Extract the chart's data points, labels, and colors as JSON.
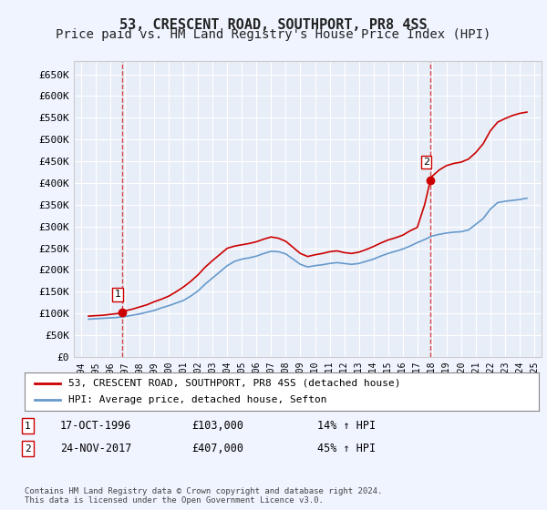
{
  "title": "53, CRESCENT ROAD, SOUTHPORT, PR8 4SS",
  "subtitle": "Price paid vs. HM Land Registry's House Price Index (HPI)",
  "title_fontsize": 11,
  "subtitle_fontsize": 10,
  "ylabel_ticks": [
    "£0",
    "£50K",
    "£100K",
    "£150K",
    "£200K",
    "£250K",
    "£300K",
    "£350K",
    "£400K",
    "£450K",
    "£500K",
    "£550K",
    "£600K",
    "£650K"
  ],
  "ytick_values": [
    0,
    50000,
    100000,
    150000,
    200000,
    250000,
    300000,
    350000,
    400000,
    450000,
    500000,
    550000,
    600000,
    650000
  ],
  "ylim": [
    0,
    680000
  ],
  "xlim_start": 1993.5,
  "xlim_end": 2025.5,
  "xticks": [
    1994,
    1995,
    1996,
    1997,
    1998,
    1999,
    2000,
    2001,
    2002,
    2003,
    2004,
    2005,
    2006,
    2007,
    2008,
    2009,
    2010,
    2011,
    2012,
    2013,
    2014,
    2015,
    2016,
    2017,
    2018,
    2019,
    2020,
    2021,
    2022,
    2023,
    2024,
    2025
  ],
  "sale1_x": 1996.8,
  "sale1_y": 103000,
  "sale1_label": "1",
  "sale1_date": "17-OCT-1996",
  "sale1_price": "£103,000",
  "sale1_hpi": "14% ↑ HPI",
  "sale2_x": 2017.9,
  "sale2_y": 407000,
  "sale2_label": "2",
  "sale2_date": "24-NOV-2017",
  "sale2_price": "£407,000",
  "sale2_hpi": "45% ↑ HPI",
  "red_line_color": "#cc0000",
  "blue_line_color": "#6699cc",
  "marker_color_red": "#cc0000",
  "vline_color": "#cc0000",
  "background_color": "#f0f4ff",
  "plot_bg_color": "#e8eef8",
  "grid_color": "#ffffff",
  "legend_label_red": "53, CRESCENT ROAD, SOUTHPORT, PR8 4SS (detached house)",
  "legend_label_blue": "HPI: Average price, detached house, Sefton",
  "footer": "Contains HM Land Registry data © Crown copyright and database right 2024.\nThis data is licensed under the Open Government Licence v3.0.",
  "hpi_data": {
    "years": [
      1994.5,
      1995.0,
      1995.5,
      1996.0,
      1996.5,
      1997.0,
      1997.5,
      1998.0,
      1998.5,
      1999.0,
      1999.5,
      2000.0,
      2000.5,
      2001.0,
      2001.5,
      2002.0,
      2002.5,
      2003.0,
      2003.5,
      2004.0,
      2004.5,
      2005.0,
      2005.5,
      2006.0,
      2006.5,
      2007.0,
      2007.5,
      2008.0,
      2008.5,
      2009.0,
      2009.5,
      2010.0,
      2010.5,
      2011.0,
      2011.5,
      2012.0,
      2012.5,
      2013.0,
      2013.5,
      2014.0,
      2014.5,
      2015.0,
      2015.5,
      2016.0,
      2016.5,
      2017.0,
      2017.5,
      2018.0,
      2018.5,
      2019.0,
      2019.5,
      2020.0,
      2020.5,
      2021.0,
      2021.5,
      2022.0,
      2022.5,
      2023.0,
      2023.5,
      2024.0,
      2024.5
    ],
    "values": [
      87000,
      88000,
      89000,
      90000,
      91000,
      93000,
      96000,
      99000,
      103000,
      107000,
      113000,
      118000,
      124000,
      130000,
      140000,
      152000,
      168000,
      182000,
      196000,
      210000,
      220000,
      225000,
      228000,
      232000,
      238000,
      243000,
      242000,
      237000,
      225000,
      213000,
      207000,
      210000,
      212000,
      215000,
      217000,
      215000,
      213000,
      215000,
      220000,
      225000,
      232000,
      238000,
      243000,
      248000,
      255000,
      263000,
      270000,
      278000,
      282000,
      285000,
      287000,
      288000,
      292000,
      305000,
      318000,
      340000,
      355000,
      358000,
      360000,
      362000,
      365000
    ]
  },
  "red_data": {
    "years": [
      1994.5,
      1995.0,
      1995.5,
      1996.0,
      1996.5,
      1996.8,
      1997.0,
      1997.5,
      1998.0,
      1998.5,
      1999.0,
      1999.5,
      2000.0,
      2000.5,
      2001.0,
      2001.5,
      2002.0,
      2002.5,
      2003.0,
      2003.5,
      2004.0,
      2004.5,
      2005.0,
      2005.5,
      2006.0,
      2006.5,
      2007.0,
      2007.5,
      2008.0,
      2008.5,
      2009.0,
      2009.5,
      2010.0,
      2010.5,
      2011.0,
      2011.5,
      2012.0,
      2012.5,
      2013.0,
      2013.5,
      2014.0,
      2014.5,
      2015.0,
      2015.5,
      2016.0,
      2016.5,
      2017.0,
      2017.5,
      2017.9,
      2018.0,
      2018.5,
      2019.0,
      2019.5,
      2020.0,
      2020.5,
      2021.0,
      2021.5,
      2022.0,
      2022.5,
      2023.0,
      2023.5,
      2024.0,
      2024.5
    ],
    "values": [
      94000,
      95000,
      96000,
      98000,
      100000,
      103000,
      106000,
      110000,
      115000,
      120000,
      127000,
      133000,
      140000,
      150000,
      161000,
      174000,
      189000,
      207000,
      222000,
      236000,
      250000,
      255000,
      258000,
      261000,
      265000,
      271000,
      276000,
      273000,
      266000,
      252000,
      238000,
      231000,
      235000,
      238000,
      242000,
      244000,
      240000,
      238000,
      241000,
      247000,
      254000,
      262000,
      269000,
      274000,
      280000,
      290000,
      298000,
      350000,
      407000,
      415000,
      430000,
      440000,
      445000,
      448000,
      455000,
      470000,
      490000,
      520000,
      540000,
      548000,
      555000,
      560000,
      563000
    ]
  }
}
